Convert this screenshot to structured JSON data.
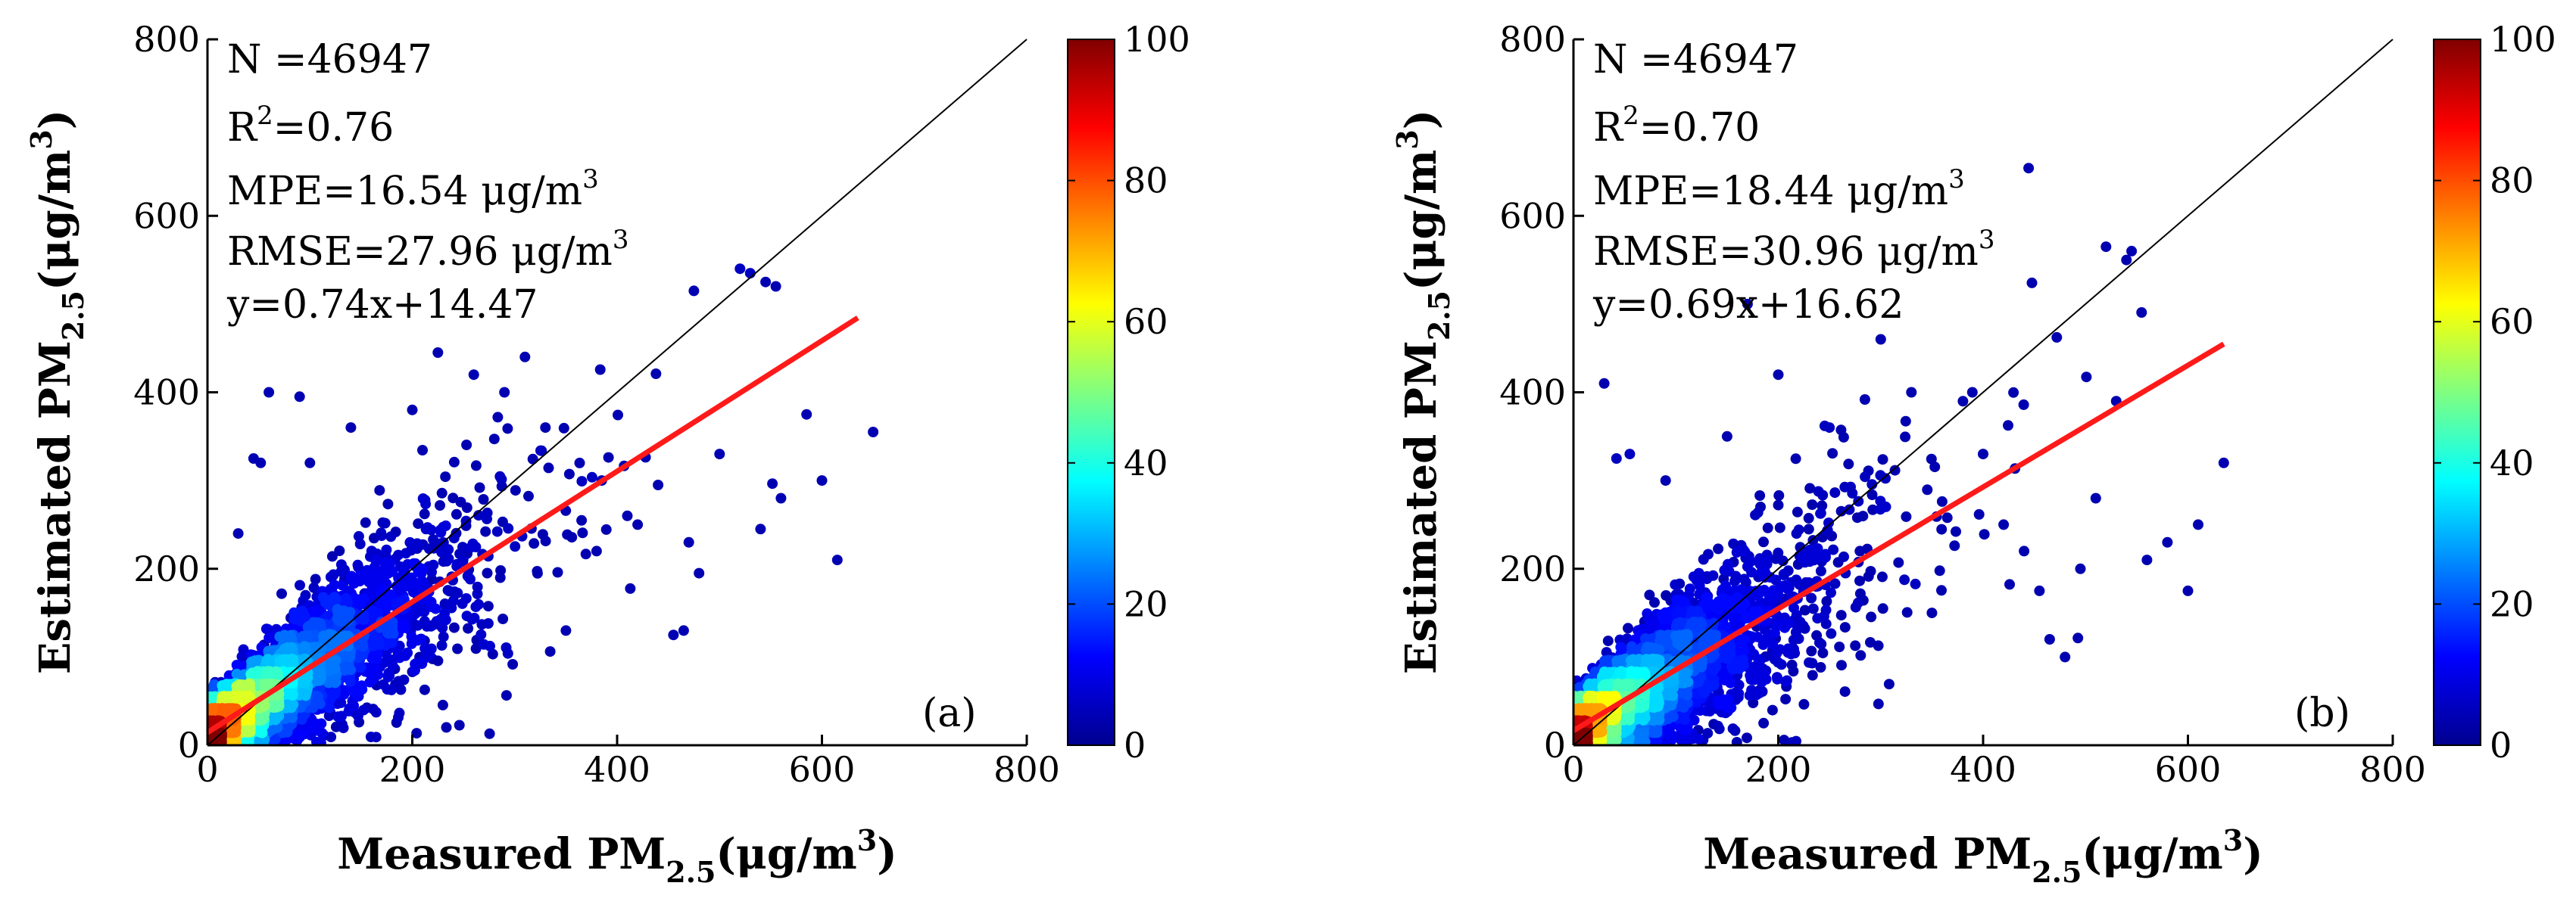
{
  "colors": {
    "ideal_line": "#000000",
    "fit_line": "#ff1a1a",
    "colormap": [
      "#00008f",
      "#0000ff",
      "#0080ff",
      "#00ffff",
      "#80ff80",
      "#ffff00",
      "#ff8000",
      "#ff0000",
      "#800000"
    ]
  },
  "chart_data": [
    {
      "type": "scatter",
      "panel_label": "(a)",
      "xlabel": "Measured PM",
      "xlabel_sub": "2.5",
      "xlabel_unit": "(μg/m",
      "xlabel_unit_sup": "3",
      "xlabel_close": ")",
      "ylabel": "Estimated PM",
      "ylabel_sub": "2.5",
      "ylabel_unit": "(μg/m",
      "ylabel_unit_sup": "3",
      "ylabel_close": ")",
      "xlim": [
        0,
        800
      ],
      "ylim": [
        0,
        800
      ],
      "xticks": [
        0,
        200,
        400,
        600,
        800
      ],
      "yticks": [
        0,
        200,
        400,
        600,
        800
      ],
      "stats": {
        "n": "N  =46947",
        "r2_prefix": "R",
        "r2_sup": "2",
        "r2_value": "=0.76",
        "mpe": "MPE=16.54 μg/m",
        "mpe_sup": "3",
        "rmse": "RMSE=27.96 μg/m",
        "rmse_sup": "3",
        "eq": "y=0.74x+14.47"
      },
      "fit": {
        "slope": 0.74,
        "intercept": 14.47,
        "x_range": [
          0,
          635
        ]
      },
      "colorbar": {
        "range": [
          0,
          100
        ],
        "ticks": [
          0,
          20,
          40,
          60,
          80,
          100
        ]
      },
      "density": {
        "seed": 11,
        "x_scale": 62,
        "y_noise": 42,
        "max_x": 640
      },
      "outliers": [
        [
          530,
          535
        ],
        [
          545,
          525
        ],
        [
          520,
          540
        ],
        [
          475,
          515
        ],
        [
          555,
          520
        ],
        [
          650,
          355
        ],
        [
          615,
          210
        ],
        [
          585,
          375
        ],
        [
          465,
          130
        ],
        [
          455,
          125
        ],
        [
          60,
          400
        ],
        [
          90,
          395
        ],
        [
          52,
          320
        ],
        [
          45,
          325
        ],
        [
          225,
          445
        ],
        [
          310,
          440
        ],
        [
          290,
          400
        ],
        [
          385,
          300
        ],
        [
          420,
          250
        ],
        [
          500,
          330
        ],
        [
          560,
          280
        ],
        [
          540,
          245
        ],
        [
          480,
          195
        ],
        [
          350,
          130
        ],
        [
          380,
          220
        ],
        [
          410,
          260
        ],
        [
          440,
          295
        ],
        [
          470,
          230
        ],
        [
          600,
          300
        ],
        [
          30,
          240
        ],
        [
          100,
          320
        ],
        [
          140,
          360
        ],
        [
          200,
          380
        ],
        [
          260,
          420
        ],
        [
          330,
          360
        ]
      ]
    },
    {
      "type": "scatter",
      "panel_label": "(b)",
      "xlabel": "Measured PM",
      "xlabel_sub": "2.5",
      "xlabel_unit": "(μg/m",
      "xlabel_unit_sup": "3",
      "xlabel_close": ")",
      "ylabel": "Estimated PM",
      "ylabel_sub": "2.5",
      "ylabel_unit": "(μg/m",
      "ylabel_unit_sup": "3",
      "ylabel_close": ")",
      "xlim": [
        0,
        800
      ],
      "ylim": [
        0,
        800
      ],
      "xticks": [
        0,
        200,
        400,
        600,
        800
      ],
      "yticks": [
        0,
        200,
        400,
        600,
        800
      ],
      "stats": {
        "n": "N  =46947",
        "r2_prefix": "R",
        "r2_sup": "2",
        "r2_value": "=0.70",
        "mpe": "MPE=18.44 μg/m",
        "mpe_sup": "3",
        "rmse": "RMSE=30.96 μg/m",
        "rmse_sup": "3",
        "eq": "y=0.69x+16.62"
      },
      "fit": {
        "slope": 0.69,
        "intercept": 16.62,
        "x_range": [
          0,
          635
        ]
      },
      "colorbar": {
        "range": [
          0,
          100
        ],
        "ticks": [
          0,
          20,
          40,
          60,
          80,
          100
        ]
      },
      "density": {
        "seed": 23,
        "x_scale": 62,
        "y_noise": 46,
        "max_x": 640
      },
      "outliers": [
        [
          520,
          565
        ],
        [
          540,
          550
        ],
        [
          545,
          560
        ],
        [
          30,
          410
        ],
        [
          55,
          330
        ],
        [
          42,
          325
        ],
        [
          170,
          500
        ],
        [
          300,
          460
        ],
        [
          635,
          320
        ],
        [
          610,
          250
        ],
        [
          600,
          175
        ],
        [
          480,
          100
        ],
        [
          465,
          120
        ],
        [
          455,
          175
        ],
        [
          530,
          390
        ],
        [
          560,
          210
        ],
        [
          400,
          330
        ],
        [
          350,
          150
        ],
        [
          420,
          250
        ],
        [
          510,
          280
        ],
        [
          580,
          230
        ],
        [
          250,
          360
        ],
        [
          150,
          350
        ],
        [
          90,
          300
        ],
        [
          200,
          420
        ],
        [
          330,
          400
        ],
        [
          440,
          220
        ],
        [
          495,
          200
        ]
      ]
    }
  ]
}
